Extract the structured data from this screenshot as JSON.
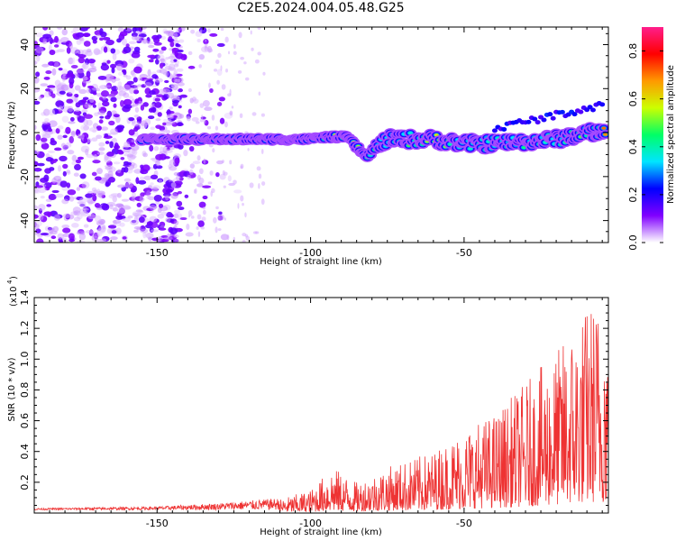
{
  "title": "C2E5.2024.004.05.48.G25",
  "chart_data": [
    {
      "type": "heatmap",
      "xlabel": "Height of straight line (km)",
      "ylabel": "Frequency (Hz)",
      "xlim": [
        -190,
        -3
      ],
      "ylim": [
        -50,
        48
      ],
      "xticks": [
        -150,
        -100,
        -50
      ],
      "xtick_labels": [
        "-150",
        "-100",
        "-50"
      ],
      "yticks": [
        40,
        20,
        0,
        -20,
        -40
      ],
      "ytick_labels": [
        "40",
        "20",
        "0",
        "-20",
        "-40"
      ],
      "colorbar": {
        "label": "Normalized spectral amplitude",
        "range": [
          0.0,
          0.9
        ],
        "ticks": [
          0.0,
          0.2,
          0.4,
          0.6,
          0.8
        ],
        "tick_labels": [
          "0.0",
          "0.2",
          "0.4",
          "0.6",
          "0.8"
        ],
        "colors": [
          "#ffffff",
          "#8000ff",
          "#0000ff",
          "#00e5ff",
          "#00ff66",
          "#ccff00",
          "#ff9900",
          "#ff0000",
          "#ff1e8c"
        ]
      },
      "ridge": [
        {
          "x": -155,
          "y": -3,
          "a": 0.3
        },
        {
          "x": -145,
          "y": -3,
          "a": 0.4
        },
        {
          "x": -135,
          "y": -3,
          "a": 0.45
        },
        {
          "x": -128,
          "y": -3,
          "a": 0.7
        },
        {
          "x": -120,
          "y": -3,
          "a": 0.45
        },
        {
          "x": -115,
          "y": -3,
          "a": 0.7
        },
        {
          "x": -110,
          "y": -3,
          "a": 0.6
        },
        {
          "x": -100,
          "y": -3,
          "a": 0.7
        },
        {
          "x": -95,
          "y": -2,
          "a": 0.45
        },
        {
          "x": -88,
          "y": -2,
          "a": 0.7
        },
        {
          "x": -82,
          "y": -11,
          "a": 0.5
        },
        {
          "x": -75,
          "y": -3,
          "a": 0.35
        },
        {
          "x": -60,
          "y": -3,
          "a": 0.6
        },
        {
          "x": -50,
          "y": -5,
          "a": 0.35
        },
        {
          "x": -40,
          "y": -5,
          "a": 0.45
        },
        {
          "x": -30,
          "y": -4,
          "a": 0.4
        },
        {
          "x": -20,
          "y": -3,
          "a": 0.4
        },
        {
          "x": -10,
          "y": 0,
          "a": 0.5
        },
        {
          "x": -5,
          "y": 0,
          "a": 0.7
        }
      ]
    },
    {
      "type": "line",
      "xlabel": "Height of straight line (km)",
      "ylabel": "SNR (10 * v/v)",
      "y_multiplier": "(x10",
      "y_multiplier_exp": "4",
      "xlim": [
        -190,
        -3
      ],
      "ylim": [
        0,
        1.4
      ],
      "xticks": [
        -150,
        -100,
        -50
      ],
      "xtick_labels": [
        "-150",
        "-100",
        "-50"
      ],
      "yticks": [
        0.2,
        0.4,
        0.6,
        0.8,
        1.0,
        1.2,
        1.4
      ],
      "ytick_labels": [
        "0.2",
        "0.4",
        "0.6",
        "0.8",
        "1.0",
        "1.2",
        "1.4"
      ],
      "color": "#ee3333",
      "envelope": [
        {
          "x": -190,
          "y": 0.03
        },
        {
          "x": -150,
          "y": 0.04
        },
        {
          "x": -130,
          "y": 0.06
        },
        {
          "x": -110,
          "y": 0.09
        },
        {
          "x": -100,
          "y": 0.15
        },
        {
          "x": -93,
          "y": 0.3
        },
        {
          "x": -85,
          "y": 0.2
        },
        {
          "x": -75,
          "y": 0.3
        },
        {
          "x": -60,
          "y": 0.4
        },
        {
          "x": -50,
          "y": 0.55
        },
        {
          "x": -40,
          "y": 0.65
        },
        {
          "x": -30,
          "y": 0.85
        },
        {
          "x": -20,
          "y": 1.05
        },
        {
          "x": -12,
          "y": 1.3
        },
        {
          "x": -8,
          "y": 1.4
        },
        {
          "x": -3,
          "y": 1.35
        }
      ]
    }
  ]
}
